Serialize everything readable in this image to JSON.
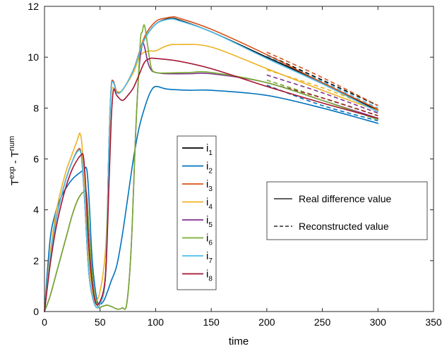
{
  "chart_data": {
    "type": "line",
    "xlabel": "time",
    "ylabel": "T^{exp} - T^{num}",
    "ylabel_base": "T",
    "ylabel_sup1": "exp",
    "ylabel_mid": " - T",
    "ylabel_sup2": "num",
    "xlim": [
      0,
      350
    ],
    "ylim": [
      0,
      12
    ],
    "xticks": [
      0,
      50,
      100,
      150,
      200,
      250,
      300,
      350
    ],
    "yticks": [
      0,
      2,
      4,
      6,
      8,
      10,
      12
    ],
    "legend_series_position": "center",
    "legend_style_position": "center-right",
    "series": [
      {
        "name": "i1",
        "name_base": "i",
        "name_sub": "1",
        "color": "#000000",
        "x": [
          0,
          5,
          10,
          15,
          20,
          25,
          30,
          33,
          36,
          40,
          45,
          50,
          55,
          58,
          60,
          62,
          65,
          70,
          80,
          90,
          100,
          110,
          115,
          120,
          150,
          200,
          250,
          300
        ],
        "y": [
          0,
          2.0,
          3.5,
          4.5,
          5.3,
          5.9,
          6.35,
          6.2,
          4.5,
          1.5,
          0.3,
          0.3,
          1.5,
          6.5,
          8.8,
          9.05,
          8.65,
          8.7,
          9.5,
          10.7,
          11.3,
          11.5,
          11.52,
          11.48,
          11.0,
          10.0,
          9.0,
          7.9
        ],
        "recon_x": [
          200,
          250,
          300
        ],
        "recon_y": [
          10.1,
          9.1,
          8.1
        ]
      },
      {
        "name": "i2",
        "name_base": "i",
        "name_sub": "2",
        "color": "#0072BD",
        "x": [
          0,
          5,
          10,
          15,
          20,
          25,
          30,
          35,
          38,
          40,
          43,
          47,
          50,
          53,
          56,
          60,
          65,
          70,
          75,
          80,
          85,
          90,
          95,
          100,
          110,
          130,
          150,
          200,
          250,
          300
        ],
        "y": [
          0,
          2.8,
          3.9,
          4.5,
          4.9,
          5.2,
          5.4,
          5.55,
          5.6,
          4.5,
          2.0,
          0.5,
          0.3,
          0.4,
          0.7,
          1.2,
          1.8,
          3.0,
          4.5,
          6.0,
          7.2,
          8.0,
          8.6,
          8.85,
          8.75,
          8.7,
          8.7,
          8.5,
          8.0,
          7.4
        ],
        "recon_x": [
          200,
          250,
          300
        ],
        "recon_y": [
          8.9,
          8.1,
          7.5
        ]
      },
      {
        "name": "i3",
        "name_base": "i",
        "name_sub": "3",
        "color": "#D95319",
        "x": [
          0,
          5,
          10,
          15,
          20,
          25,
          30,
          33,
          36,
          40,
          45,
          50,
          55,
          58,
          60,
          62,
          65,
          70,
          80,
          90,
          100,
          110,
          115,
          120,
          150,
          200,
          250,
          300
        ],
        "y": [
          0,
          2.0,
          3.5,
          4.5,
          5.3,
          5.9,
          6.35,
          6.2,
          4.5,
          1.5,
          0.3,
          0.3,
          1.5,
          6.5,
          8.8,
          9.05,
          8.65,
          8.7,
          9.5,
          10.8,
          11.4,
          11.55,
          11.58,
          11.55,
          11.1,
          10.1,
          9.0,
          7.95
        ],
        "recon_x": [
          200,
          250,
          300
        ],
        "recon_y": [
          10.2,
          9.2,
          8.1
        ]
      },
      {
        "name": "i4",
        "name_base": "i",
        "name_sub": "4",
        "color": "#EDB120",
        "x": [
          0,
          5,
          10,
          15,
          20,
          25,
          30,
          32,
          34,
          37,
          40,
          45,
          50,
          55,
          58,
          60,
          65,
          70,
          80,
          85,
          88,
          90,
          95,
          100,
          110,
          120,
          150,
          200,
          250,
          300
        ],
        "y": [
          0,
          2.2,
          3.8,
          4.8,
          5.6,
          6.2,
          6.8,
          7.0,
          6.4,
          4.0,
          2.0,
          0.5,
          0.8,
          2.5,
          6.0,
          8.6,
          8.65,
          8.7,
          9.4,
          10.0,
          10.15,
          10.2,
          10.25,
          10.25,
          10.45,
          10.5,
          10.4,
          9.55,
          8.7,
          7.9
        ],
        "recon_x": [
          200,
          250,
          300
        ],
        "recon_y": [
          9.5,
          8.8,
          7.95
        ]
      },
      {
        "name": "i5",
        "name_base": "i",
        "name_sub": "5",
        "color": "#7E2F8E",
        "x": [
          0,
          5,
          10,
          15,
          20,
          25,
          30,
          35,
          38,
          40,
          44,
          48,
          52,
          56,
          60,
          65,
          68,
          70,
          74,
          78,
          82,
          85,
          88,
          90,
          93,
          96,
          100,
          110,
          130,
          150,
          200,
          250,
          300
        ],
        "y": [
          0,
          0.6,
          1.4,
          2.2,
          3.0,
          3.8,
          4.4,
          4.7,
          4.6,
          3.2,
          1.0,
          0.2,
          0.2,
          0.25,
          0.2,
          0.1,
          0.1,
          0.15,
          0.3,
          2.5,
          7.0,
          9.5,
          10.5,
          10.4,
          9.8,
          9.5,
          9.4,
          9.35,
          9.35,
          9.35,
          9.0,
          8.3,
          7.6
        ],
        "recon_x": [
          200,
          250,
          300
        ],
        "recon_y": [
          9.3,
          8.6,
          7.8
        ]
      },
      {
        "name": "i6",
        "name_base": "i",
        "name_sub": "6",
        "color": "#77AC30",
        "x": [
          0,
          5,
          10,
          15,
          20,
          25,
          30,
          35,
          38,
          40,
          44,
          48,
          52,
          56,
          60,
          65,
          68,
          70,
          74,
          78,
          82,
          86,
          88,
          90,
          93,
          96,
          100,
          110,
          130,
          150,
          200,
          250,
          300
        ],
        "y": [
          0,
          0.6,
          1.4,
          2.2,
          3.0,
          3.8,
          4.4,
          4.7,
          4.6,
          3.2,
          1.0,
          0.2,
          0.2,
          0.25,
          0.2,
          0.1,
          0.1,
          0.15,
          0.3,
          2.5,
          7.0,
          10.5,
          11.0,
          11.25,
          10.4,
          9.6,
          9.4,
          9.38,
          9.4,
          9.4,
          9.0,
          8.3,
          7.55
        ],
        "recon_x": [
          200,
          250,
          300
        ],
        "recon_y": [
          9.1,
          8.4,
          7.7
        ]
      },
      {
        "name": "i7",
        "name_base": "i",
        "name_sub": "7",
        "color": "#4DBEEE",
        "x": [
          0,
          5,
          10,
          15,
          20,
          25,
          30,
          33,
          36,
          40,
          45,
          50,
          55,
          58,
          60,
          62,
          65,
          70,
          80,
          90,
          100,
          110,
          115,
          120,
          150,
          200,
          250,
          300
        ],
        "y": [
          0,
          2.0,
          3.5,
          4.5,
          5.3,
          5.9,
          6.3,
          6.15,
          4.5,
          1.5,
          0.3,
          0.3,
          1.5,
          6.5,
          8.75,
          9.0,
          8.6,
          8.7,
          9.5,
          10.7,
          11.3,
          11.48,
          11.5,
          11.45,
          11.0,
          9.95,
          8.95,
          7.85
        ],
        "recon_x": [
          200,
          250,
          300
        ],
        "recon_y": [
          10.05,
          9.05,
          8.0
        ]
      },
      {
        "name": "i8",
        "name_base": "i",
        "name_sub": "8",
        "color": "#A2142F",
        "x": [
          0,
          5,
          10,
          15,
          20,
          25,
          30,
          33,
          35,
          37,
          40,
          45,
          50,
          55,
          58,
          60,
          62,
          65,
          70,
          75,
          80,
          85,
          90,
          95,
          100,
          120,
          150,
          200,
          250,
          300
        ],
        "y": [
          0,
          1.8,
          3.2,
          4.2,
          5.0,
          5.6,
          6.0,
          6.15,
          6.1,
          5.0,
          2.5,
          0.5,
          0.4,
          1.5,
          5.0,
          7.5,
          8.7,
          8.5,
          8.3,
          8.5,
          8.8,
          9.3,
          9.8,
          9.95,
          9.95,
          9.85,
          9.55,
          8.85,
          8.2,
          7.6
        ],
        "recon_x": [
          200,
          250,
          300
        ],
        "recon_y": [
          9.0,
          8.4,
          7.7
        ]
      }
    ],
    "style_legend": [
      {
        "label": "Real difference value",
        "style": "solid"
      },
      {
        "label": "Reconstructed value",
        "style": "dashed"
      }
    ]
  }
}
